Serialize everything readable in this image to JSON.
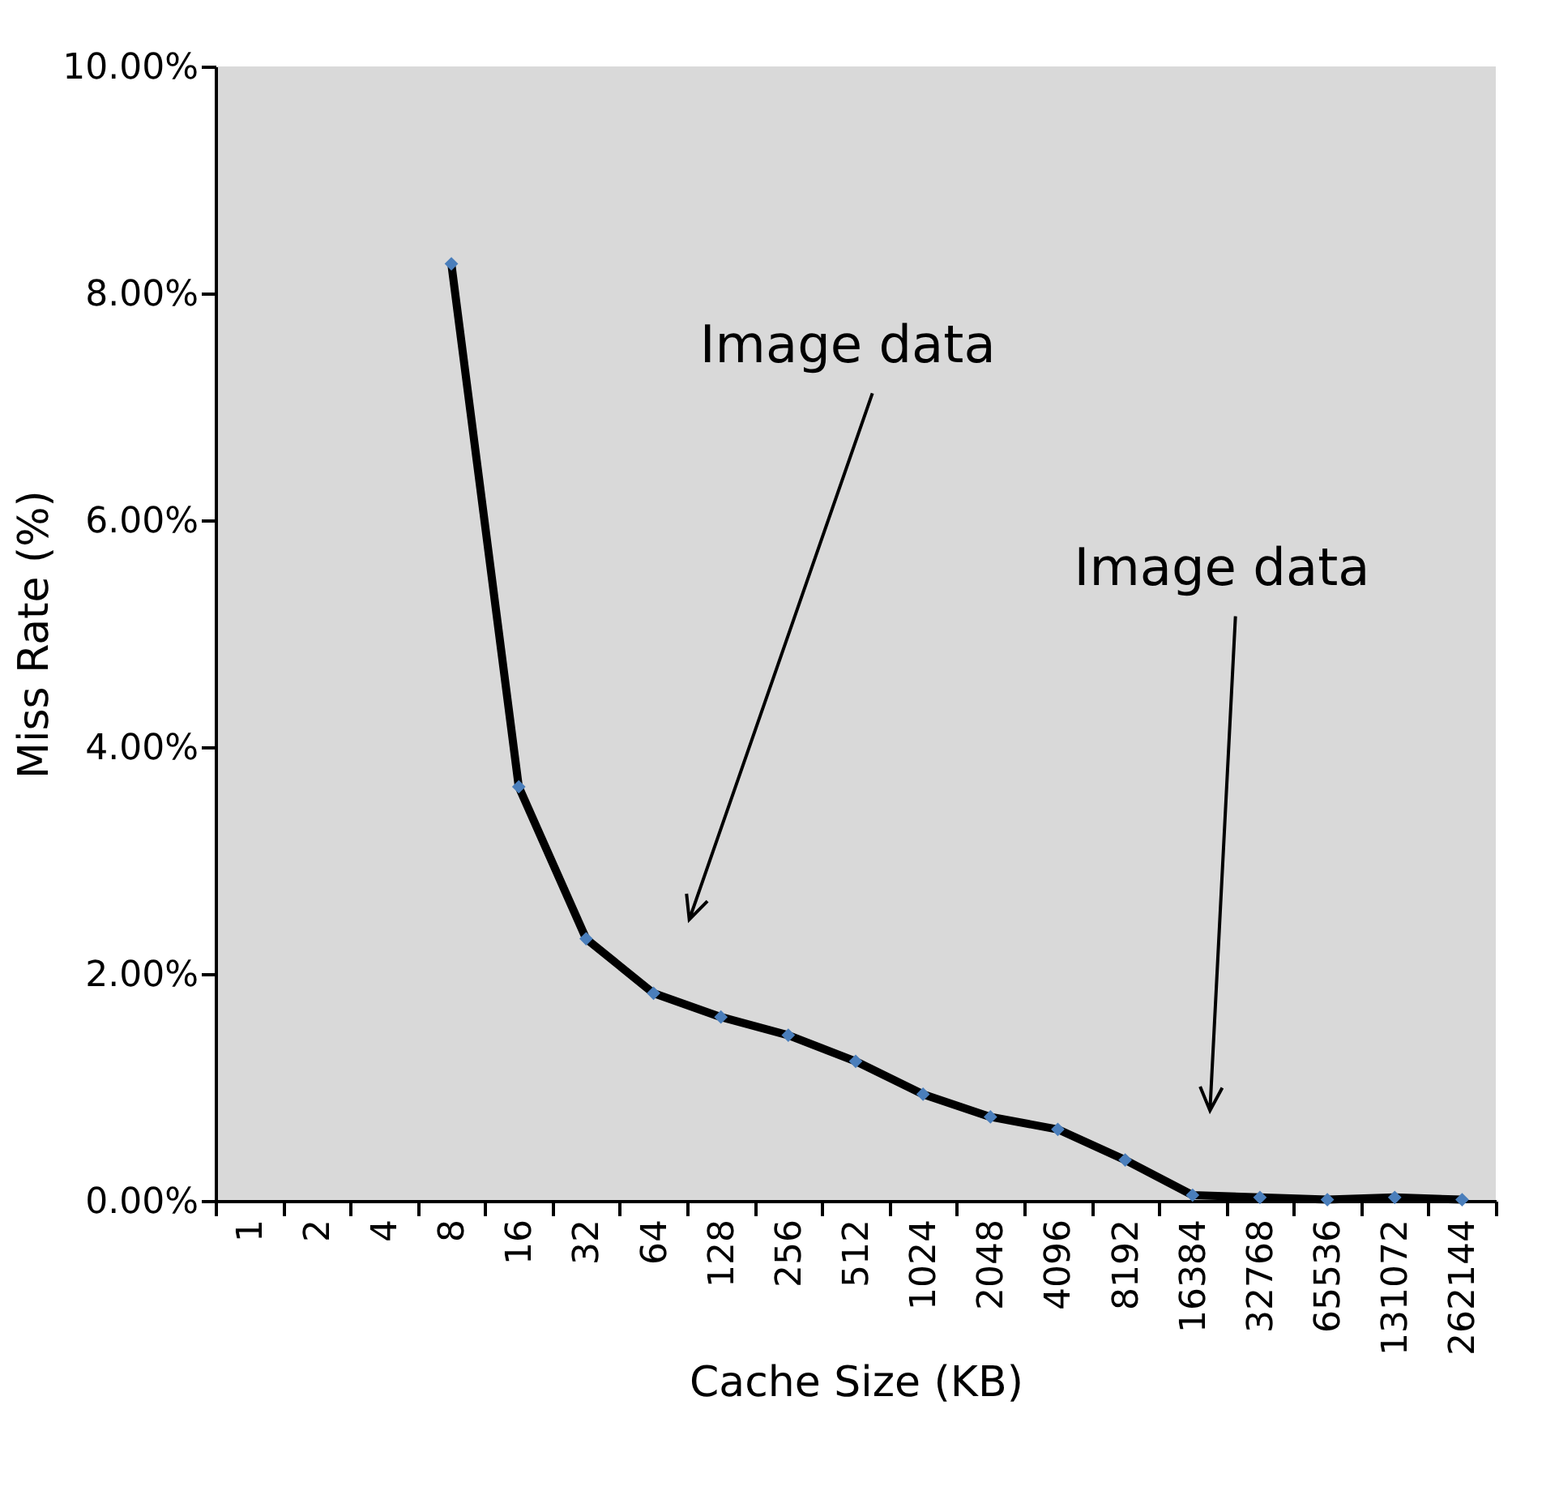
{
  "chart_data": {
    "type": "line",
    "xlabel": "Cache Size (KB)",
    "ylabel": "Miss Rate (%)",
    "categories": [
      "1",
      "2",
      "4",
      "8",
      "16",
      "32",
      "64",
      "128",
      "256",
      "512",
      "1024",
      "2048",
      "4096",
      "8192",
      "16384",
      "32768",
      "65536",
      "131072",
      "262144"
    ],
    "series": [
      {
        "color": "#000000",
        "values": [
          null,
          null,
          null,
          8.26,
          3.65,
          2.31,
          1.83,
          1.62,
          1.46,
          1.23,
          0.94,
          0.74,
          0.63,
          0.36,
          0.05,
          0.03,
          0.01,
          0.03,
          0.01
        ]
      }
    ],
    "ylim": [
      0,
      10
    ],
    "yticks": [
      {
        "value": 0,
        "label": "0.00%"
      },
      {
        "value": 2,
        "label": "2.00%"
      },
      {
        "value": 4,
        "label": "4.00%"
      },
      {
        "value": 6,
        "label": "6.00%"
      },
      {
        "value": 8,
        "label": "8.00%"
      },
      {
        "value": 10,
        "label": "10.00%"
      }
    ],
    "annotations": [
      "Image data",
      "Image data"
    ],
    "grid": false,
    "marker": "diamond",
    "line_style": "solid"
  }
}
